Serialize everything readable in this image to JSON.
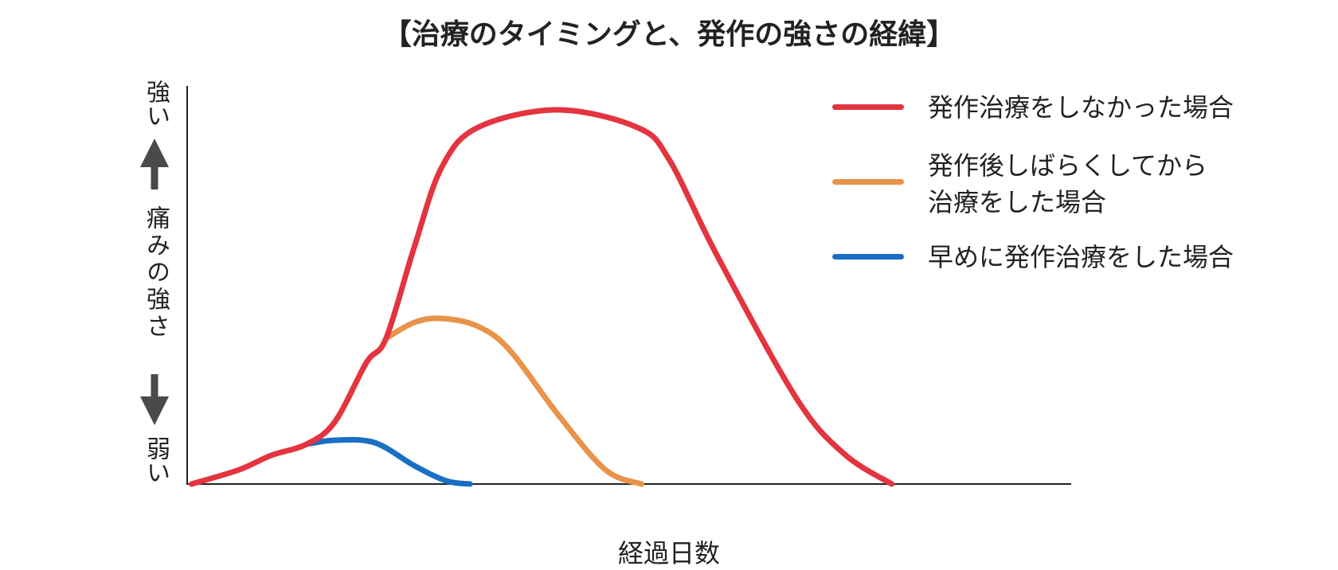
{
  "chart_data": {
    "type": "line",
    "title": "【治療のタイミングと、発作の強さの経緯】",
    "xlabel": "経過日数",
    "ylabel": {
      "top": "強い",
      "middle": "痛みの強さ",
      "bottom": "弱い"
    },
    "xlim": [
      0,
      100
    ],
    "ylim": [
      0,
      100
    ],
    "grid": false,
    "legend_position": "top-right",
    "series": [
      {
        "name": "発作治療をしなかった場合",
        "color": "#e3343f",
        "points": [
          [
            0.5,
            0
          ],
          [
            5.9,
            3.6
          ],
          [
            9.5,
            7.2
          ],
          [
            13.5,
            10
          ],
          [
            16.7,
            15.6
          ],
          [
            20.3,
            30.6
          ],
          [
            22.5,
            36.6
          ],
          [
            25.7,
            59.6
          ],
          [
            28.8,
            79.6
          ],
          [
            32.9,
            89.6
          ],
          [
            41.9,
            94
          ],
          [
            50.9,
            89.6
          ],
          [
            54.5,
            81.6
          ],
          [
            59.9,
            57.6
          ],
          [
            68.9,
            21.6
          ],
          [
            74.3,
            7.6
          ],
          [
            79.7,
            0
          ]
        ]
      },
      {
        "name": "発作後しばらくしてから\n治療をした場合",
        "color": "#e8934a",
        "points": [
          [
            22.5,
            36.6
          ],
          [
            25.7,
            40.6
          ],
          [
            28.8,
            41.6
          ],
          [
            32.9,
            39.6
          ],
          [
            36.5,
            33.6
          ],
          [
            41.9,
            17.6
          ],
          [
            47.3,
            3.6
          ],
          [
            51.4,
            0
          ]
        ]
      },
      {
        "name": "早めに発作治療をした場合",
        "color": "#1a6fc4",
        "points": [
          [
            13.5,
            10
          ],
          [
            16.7,
            11
          ],
          [
            21.2,
            10.4
          ],
          [
            25.7,
            4.6
          ],
          [
            29.3,
            0.8
          ],
          [
            32,
            0
          ]
        ]
      }
    ]
  }
}
